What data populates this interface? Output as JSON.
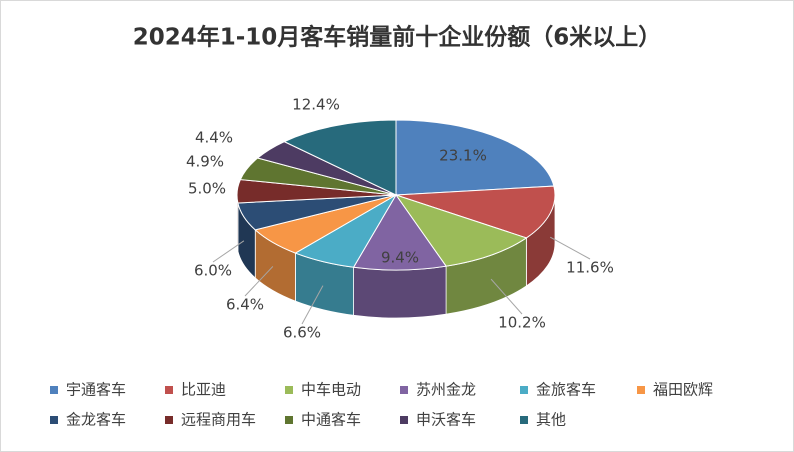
{
  "chart_data": {
    "type": "pie3d",
    "title": "2024年1-10月客车销量前十企业份额（6米以上）",
    "categories": [
      "宇通客车",
      "比亚迪",
      "中车电动",
      "苏州金龙",
      "金旅客车",
      "福田欧辉",
      "金龙客车",
      "远程商用车",
      "中通客车",
      "申沃客车",
      "其他"
    ],
    "values": [
      23.1,
      11.6,
      10.2,
      9.4,
      6.6,
      6.4,
      6.0,
      5.0,
      4.9,
      4.4,
      12.4
    ],
    "value_labels": [
      "23.1%",
      "11.6%",
      "10.2%",
      "9.4%",
      "6.6%",
      "6.4%",
      "6.0%",
      "5.0%",
      "4.9%",
      "4.4%",
      "12.4%"
    ],
    "colors": [
      "#4f81bd",
      "#c0504d",
      "#9bbb59",
      "#8064a2",
      "#4bacc6",
      "#f79646",
      "#2c4d75",
      "#772c2a",
      "#5f7530",
      "#4d3b62",
      "#276a7c"
    ],
    "legend": "bottom"
  }
}
